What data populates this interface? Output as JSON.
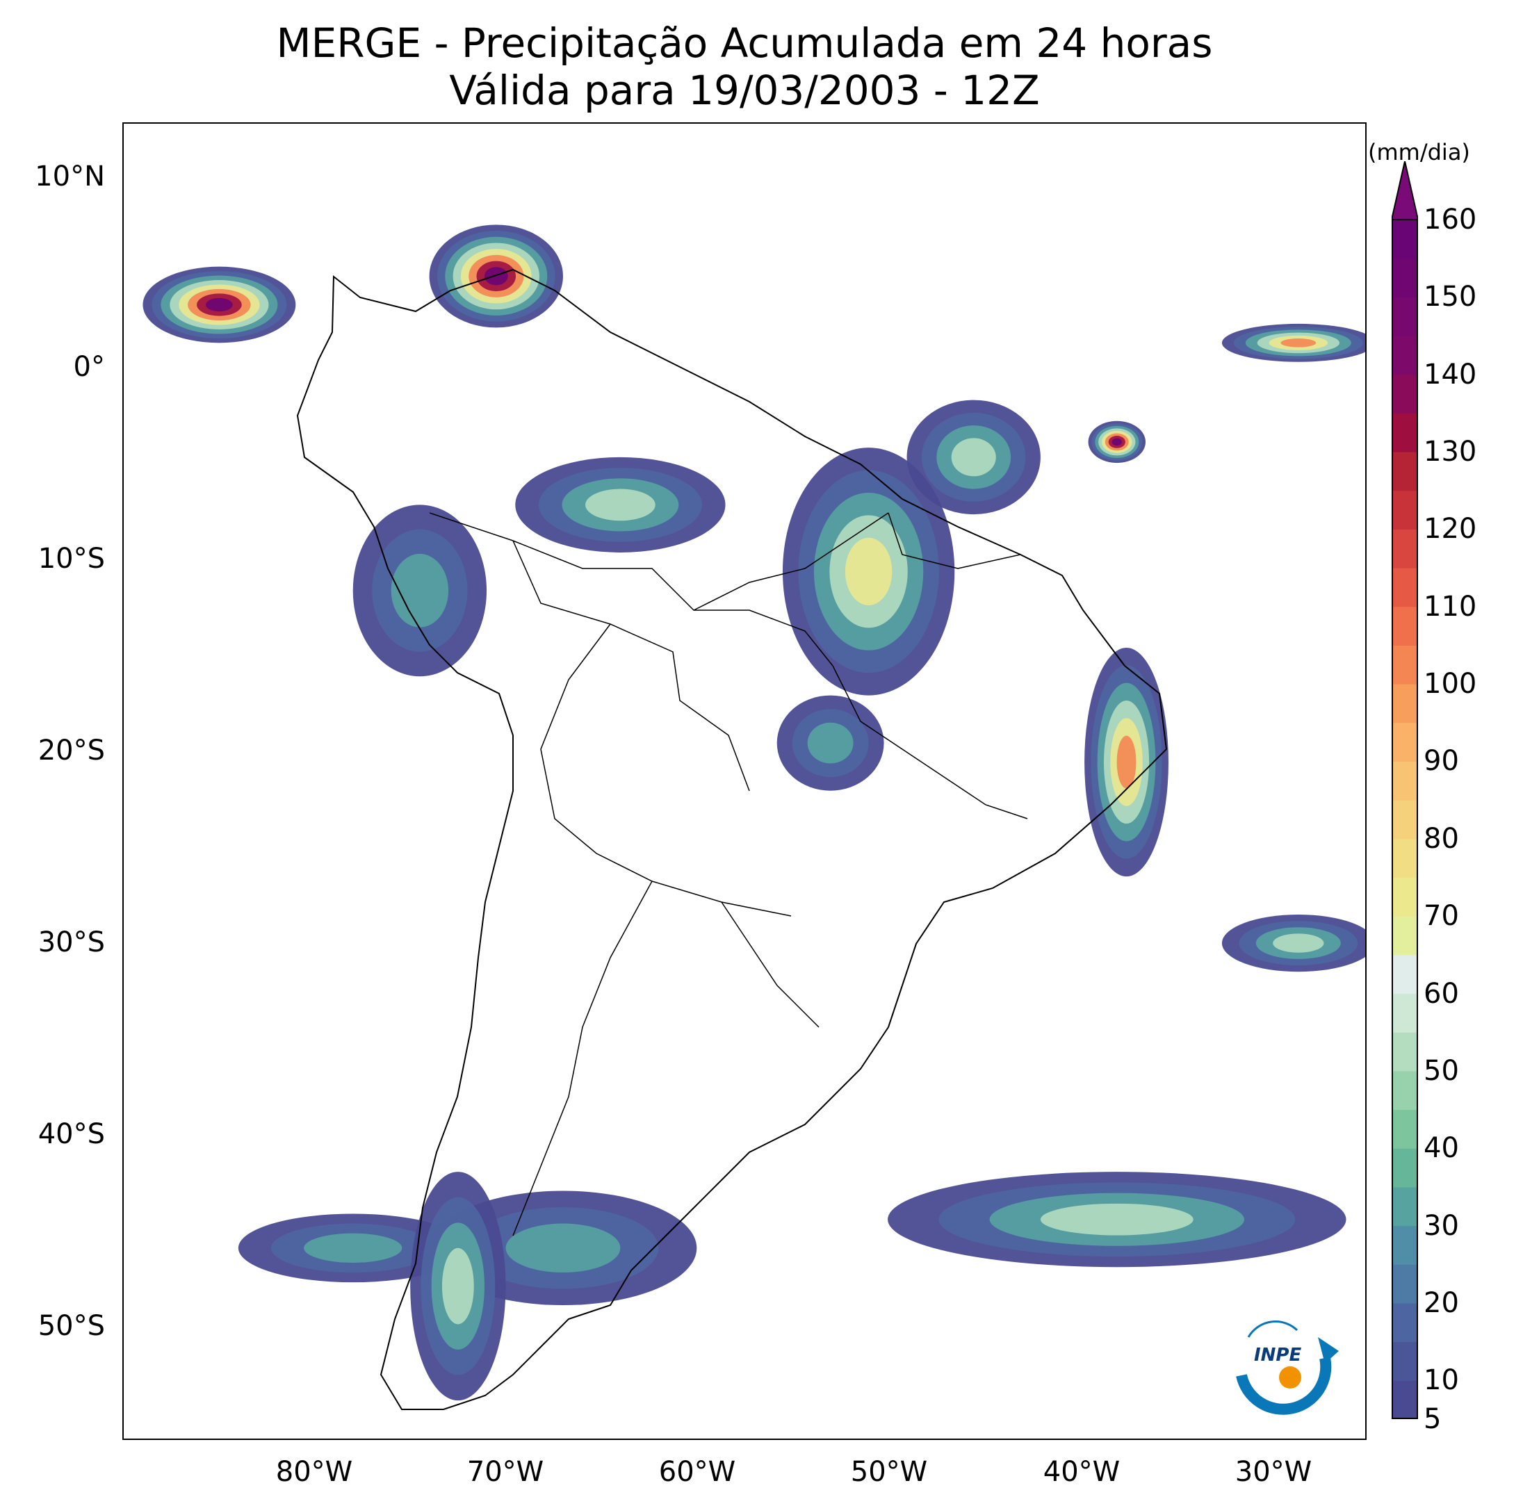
{
  "title": {
    "line1": "MERGE - Precipitação Acumulada em 24 horas",
    "line2": "Válida para 19/03/2003 - 12Z"
  },
  "map": {
    "lon_range": [
      -90,
      -25
    ],
    "lat_range": [
      -56,
      13
    ],
    "lat_ticks": [
      "10°N",
      "0°",
      "10°S",
      "20°S",
      "30°S",
      "40°S",
      "50°S"
    ],
    "lon_ticks": [
      "80°W",
      "70°W",
      "60°W",
      "50°W",
      "40°W",
      "30°W"
    ],
    "precip_cells": [
      {
        "lon": -70.5,
        "lat": 5.0,
        "rx": 3.5,
        "ry": 2.7,
        "peak": 160
      },
      {
        "lon": -85.0,
        "lat": 3.5,
        "rx": 4.0,
        "ry": 2.0,
        "peak": 160
      },
      {
        "lon": -38.0,
        "lat": -3.7,
        "rx": 1.5,
        "ry": 1.1,
        "peak": 160
      },
      {
        "lon": -28.5,
        "lat": 1.5,
        "rx": 4.0,
        "ry": 1.0,
        "peak": 120
      },
      {
        "lon": -64.0,
        "lat": -7.0,
        "rx": 5.5,
        "ry": 2.5,
        "peak": 60
      },
      {
        "lon": -74.5,
        "lat": -11.5,
        "rx": 3.5,
        "ry": 4.5,
        "peak": 40
      },
      {
        "lon": -51.0,
        "lat": -10.5,
        "rx": 4.5,
        "ry": 6.5,
        "peak": 70
      },
      {
        "lon": -45.5,
        "lat": -4.5,
        "rx": 3.5,
        "ry": 3.0,
        "peak": 50
      },
      {
        "lon": -37.5,
        "lat": -20.5,
        "rx": 2.2,
        "ry": 6.0,
        "peak": 100
      },
      {
        "lon": -53.0,
        "lat": -19.5,
        "rx": 2.8,
        "ry": 2.5,
        "peak": 40
      },
      {
        "lon": -28.5,
        "lat": -30.0,
        "rx": 4.0,
        "ry": 1.5,
        "peak": 50
      },
      {
        "lon": -38.0,
        "lat": -44.5,
        "rx": 12.0,
        "ry": 2.5,
        "peak": 50
      },
      {
        "lon": -67.0,
        "lat": -46.0,
        "rx": 7.0,
        "ry": 3.0,
        "peak": 40
      },
      {
        "lon": -78.0,
        "lat": -46.0,
        "rx": 6.0,
        "ry": 1.8,
        "peak": 30
      },
      {
        "lon": -72.5,
        "lat": -48.0,
        "rx": 2.5,
        "ry": 6.0,
        "peak": 50
      }
    ]
  },
  "colorbar": {
    "unit": "(mm/dia)",
    "levels": [
      5,
      10,
      15,
      20,
      25,
      30,
      35,
      40,
      45,
      50,
      55,
      60,
      65,
      70,
      75,
      80,
      85,
      90,
      95,
      100,
      105,
      110,
      115,
      120,
      125,
      130,
      135,
      140,
      145,
      150,
      155,
      160
    ],
    "tick_labels": [
      "5",
      "10",
      "20",
      "30",
      "40",
      "50",
      "60",
      "70",
      "80",
      "90",
      "100",
      "110",
      "120",
      "130",
      "140",
      "150",
      "160"
    ],
    "colors": [
      "#4a4a92",
      "#4b5699",
      "#4d66a1",
      "#4e7aa6",
      "#4f8ea6",
      "#56a3a0",
      "#66b79a",
      "#7cc59d",
      "#98d2ad",
      "#b4ddc0",
      "#cfe8d6",
      "#e0edea",
      "#e3ef9c",
      "#ebe88e",
      "#f0dd84",
      "#f5d17c",
      "#f8c373",
      "#f9b268",
      "#f79e5d",
      "#f48653",
      "#ef704b",
      "#e65a45",
      "#d9453f",
      "#c83339",
      "#b42434",
      "#9e0f3f",
      "#8a0b5a",
      "#7d0a6b",
      "#76086f",
      "#700672",
      "#6a0575"
    ],
    "extend_color": "#7a0a78"
  },
  "logo": {
    "text": "INPE"
  }
}
